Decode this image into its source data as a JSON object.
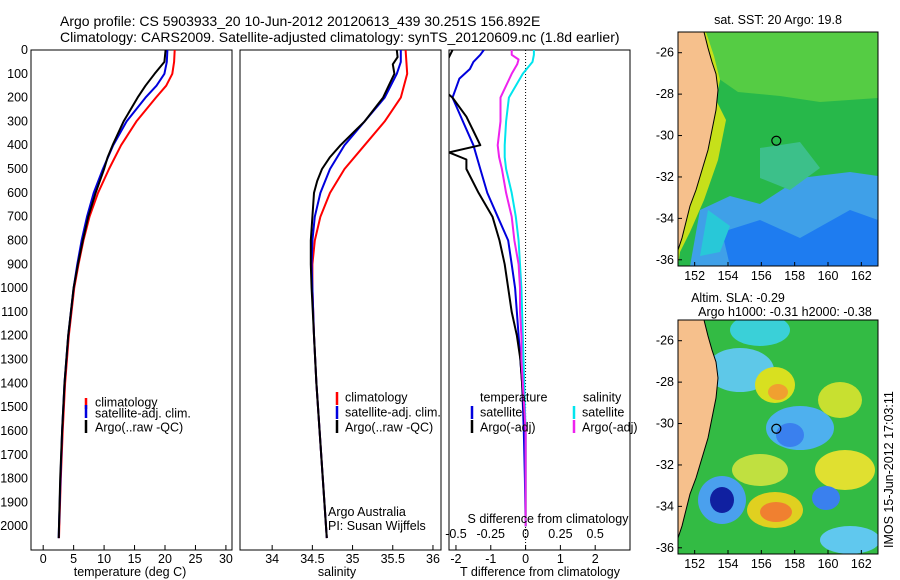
{
  "header": {
    "line1": "Argo profile: CS 5903933_20 10-Jun-2012 20120613_439 30.251S 156.892E",
    "line2": "Climatology: CARS2009. Satellite-adjusted climatology: synTS_20120609.nc (1.8d earlier)"
  },
  "colors": {
    "climatology": "#ff0000",
    "satellite": "#0000dd",
    "argo": "#000000",
    "sal_satellite": "#00e5ee",
    "sal_argo": "#ee22ee",
    "land": "#f6c08c"
  },
  "chart_data": [
    {
      "type": "line",
      "title": "",
      "xlabel": "temperature (deg C)",
      "ylabel": "",
      "xlim": [
        -2,
        31
      ],
      "ylim": [
        2100,
        0
      ],
      "xticks": [
        0,
        5,
        10,
        15,
        20,
        25,
        30
      ],
      "yticks": [
        0,
        100,
        200,
        300,
        400,
        500,
        600,
        700,
        800,
        900,
        1000,
        1100,
        1200,
        1300,
        1400,
        1500,
        1600,
        1700,
        1800,
        1900,
        2000
      ],
      "legend": [
        "climatology",
        "satellite-adj. clim.",
        "Argo(..raw -QC)"
      ],
      "series": [
        {
          "name": "climatology",
          "depth": [
            0,
            50,
            100,
            150,
            200,
            300,
            400,
            500,
            600,
            700,
            800,
            900,
            1000,
            1200,
            1400,
            1600,
            1800,
            2000,
            2050
          ],
          "values": [
            21.6,
            21.5,
            21.2,
            20.2,
            18.5,
            15.3,
            12.8,
            10.8,
            9.0,
            7.6,
            6.6,
            5.8,
            5.1,
            4.2,
            3.6,
            3.2,
            2.9,
            2.65,
            2.6
          ]
        },
        {
          "name": "satellite-adj. clim.",
          "depth": [
            0,
            50,
            100,
            150,
            200,
            300,
            400,
            500,
            600,
            700,
            800,
            900,
            1000,
            1200,
            1400,
            1600,
            1800,
            2000,
            2050
          ],
          "values": [
            20.4,
            20.3,
            19.9,
            18.6,
            16.8,
            13.7,
            11.5,
            9.8,
            8.3,
            7.2,
            6.3,
            5.6,
            5.0,
            4.1,
            3.5,
            3.1,
            2.85,
            2.6,
            2.55
          ]
        },
        {
          "name": "Argo(..raw -QC)",
          "depth": [
            0,
            50,
            100,
            150,
            200,
            300,
            400,
            450,
            500,
            600,
            700,
            800,
            900,
            1000,
            1200,
            1400,
            1600,
            1800,
            2000,
            2050
          ],
          "values": [
            20.1,
            19.9,
            18.3,
            16.8,
            15.5,
            13.2,
            11.4,
            10.6,
            10.0,
            8.6,
            7.4,
            6.5,
            5.7,
            5.0,
            4.1,
            3.5,
            3.1,
            2.8,
            2.6,
            2.55
          ]
        }
      ]
    },
    {
      "type": "line",
      "title": "",
      "xlabel": "salinity",
      "ylabel": "",
      "xlim": [
        33.6,
        36.1
      ],
      "ylim": [
        2100,
        0
      ],
      "xticks": [
        34,
        34.5,
        35,
        35.5,
        36
      ],
      "legend": [
        "climatology",
        "satellite-adj. clim.",
        "Argo(..raw -QC)"
      ],
      "annotations": [
        "Argo Australia",
        "PI: Susan Wijffels"
      ],
      "series": [
        {
          "name": "climatology",
          "depth": [
            0,
            50,
            100,
            200,
            300,
            400,
            500,
            600,
            700,
            800,
            900,
            1000,
            1200,
            1400,
            1600,
            1800,
            2000,
            2050
          ],
          "values": [
            35.66,
            35.67,
            35.68,
            35.6,
            35.4,
            35.15,
            34.9,
            34.72,
            34.6,
            34.53,
            34.5,
            34.5,
            34.52,
            34.55,
            34.59,
            34.63,
            34.67,
            34.68
          ]
        },
        {
          "name": "satellite-adj. clim.",
          "depth": [
            0,
            50,
            100,
            200,
            300,
            400,
            500,
            600,
            700,
            800,
            900,
            1000,
            1200,
            1400,
            1600,
            1800,
            2000,
            2050
          ],
          "values": [
            35.6,
            35.6,
            35.55,
            35.4,
            35.15,
            34.9,
            34.72,
            34.6,
            34.53,
            34.5,
            34.49,
            34.5,
            34.52,
            34.55,
            34.59,
            34.63,
            34.67,
            34.68
          ]
        },
        {
          "name": "Argo(..raw -QC)",
          "depth": [
            0,
            30,
            60,
            100,
            150,
            200,
            300,
            400,
            450,
            500,
            550,
            600,
            700,
            800,
            900,
            1000,
            1200,
            1400,
            1600,
            1800,
            2000,
            2050
          ],
          "values": [
            35.55,
            35.56,
            35.5,
            35.52,
            35.45,
            35.38,
            35.15,
            34.85,
            34.72,
            34.62,
            34.56,
            34.52,
            34.5,
            34.48,
            34.48,
            34.49,
            34.52,
            34.55,
            34.59,
            34.63,
            34.67,
            34.68
          ]
        }
      ]
    },
    {
      "type": "line",
      "title": "",
      "xlabel": "T difference from climatology",
      "xlabel2": "S difference from climatology",
      "xlim": [
        -2.2,
        3.0
      ],
      "ylim": [
        2100,
        0
      ],
      "xticks": [
        -2,
        -1,
        0,
        1,
        2
      ],
      "xticks_top": [
        "-0.5",
        "-0.25",
        "0",
        "0.25",
        "0.5"
      ],
      "legend_titles": [
        "temperature",
        "salinity"
      ],
      "legend": [
        "satellite",
        "Argo(-adj)",
        "satellite",
        "Argo(-adj)"
      ],
      "series": [
        {
          "name": "temperature satellite",
          "depth": [
            0,
            20,
            50,
            80,
            120,
            160,
            200,
            300,
            400,
            500,
            600,
            700,
            800,
            900,
            1000,
            1200,
            1400,
            1600,
            1800,
            2000
          ],
          "values": [
            -1.2,
            -1.3,
            -1.5,
            -1.6,
            -1.9,
            -2.0,
            -2.1,
            -1.8,
            -1.5,
            -1.3,
            -1.1,
            -0.8,
            -0.5,
            -0.4,
            -0.3,
            -0.2,
            -0.1,
            -0.05,
            -0.02,
            0
          ]
        },
        {
          "name": "temperature Argo(-adj)",
          "depth": [
            0,
            60,
            100,
            150,
            200,
            280,
            340,
            400,
            430,
            460,
            500,
            600,
            700,
            800,
            900,
            1000,
            1100,
            1200,
            1300,
            1400,
            1500,
            1600,
            1800,
            2000
          ],
          "values": [
            -2.1,
            -2.3,
            -2.4,
            -2.5,
            -2.1,
            -1.7,
            -1.5,
            -1.3,
            -2.2,
            -1.7,
            -1.7,
            -1.35,
            -0.95,
            -0.75,
            -0.6,
            -0.5,
            -0.4,
            -0.25,
            -0.15,
            -0.1,
            -0.05,
            0,
            0,
            0
          ]
        },
        {
          "name": "salinity satellite",
          "depth": [
            0,
            20,
            50,
            100,
            200,
            300,
            400,
            450,
            500,
            600,
            700,
            800,
            900,
            1000,
            1200,
            1400,
            1600,
            1800,
            2000
          ],
          "values": [
            0.06,
            0.06,
            0.05,
            -0.02,
            -0.12,
            -0.14,
            -0.15,
            -0.15,
            -0.14,
            -0.1,
            -0.07,
            -0.05,
            -0.04,
            -0.03,
            -0.02,
            -0.01,
            0,
            0,
            0
          ]
        },
        {
          "name": "salinity Argo(-adj)",
          "depth": [
            0,
            20,
            40,
            60,
            100,
            200,
            300,
            400,
            450,
            500,
            600,
            700,
            800,
            900,
            1000,
            1100,
            1200,
            1300,
            1400,
            1500,
            1600,
            1800,
            2000
          ],
          "values": [
            -0.1,
            -0.1,
            -0.05,
            -0.06,
            -0.1,
            -0.18,
            -0.18,
            -0.2,
            -0.19,
            -0.17,
            -0.14,
            -0.1,
            -0.08,
            -0.05,
            -0.04,
            -0.04,
            -0.03,
            -0.03,
            -0.02,
            -0.01,
            0,
            0,
            0
          ]
        }
      ]
    },
    {
      "type": "heatmap",
      "title": "sat. SST: 20 Argo: 19.8",
      "xlim": [
        151,
        163
      ],
      "ylim": [
        -36.3,
        -25
      ],
      "xticks": [
        152,
        154,
        156,
        158,
        160,
        162
      ],
      "yticks": [
        -26,
        -28,
        -30,
        -32,
        -34,
        -36
      ],
      "marker": [
        156.9,
        -30.25
      ]
    },
    {
      "type": "heatmap",
      "title": "Altim. SLA: -0.29",
      "subtitle": "Argo h1000: -0.31 h2000: -0.38",
      "xlim": [
        151,
        163
      ],
      "ylim": [
        -36.3,
        -25
      ],
      "xticks": [
        152,
        154,
        156,
        158,
        160,
        162
      ],
      "yticks": [
        -26,
        -28,
        -30,
        -32,
        -34,
        -36
      ],
      "marker": [
        156.9,
        -30.25
      ]
    }
  ],
  "footer": {
    "stamp": "IMOS 15-Jun-2012 17:03:11"
  }
}
